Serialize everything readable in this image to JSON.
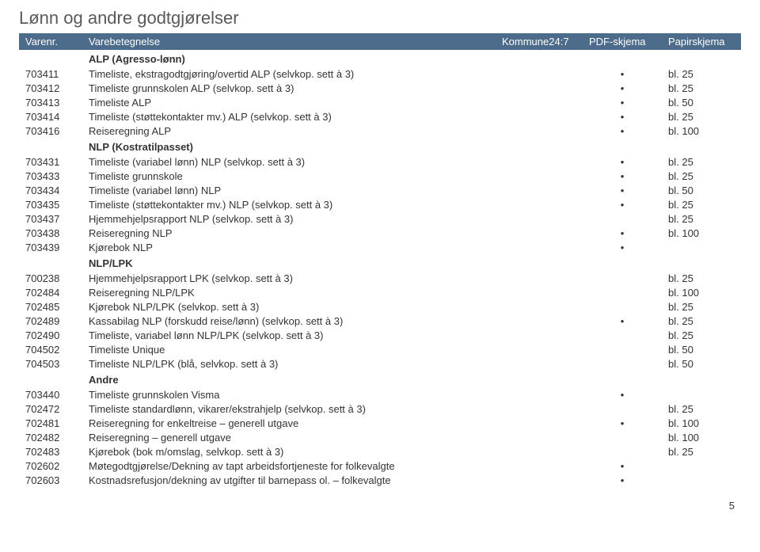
{
  "title": "Lønn og andre godtgjørelser",
  "columns": {
    "varenr": "Varenr.",
    "varebetegnelse": "Varebetegnelse",
    "kommune": "Kommune24:7",
    "pdf": "PDF-skjema",
    "papir": "Papirskjema"
  },
  "dot": "•",
  "page_number": "5",
  "sections": [
    {
      "label": "ALP (Agresso-lønn)",
      "rows": [
        {
          "nr": "703411",
          "desc": "Timeliste, ekstragodtgjøring/overtid ALP (selvkop. sett à 3)",
          "k247": "",
          "pdf": "•",
          "paper": "bl. 25"
        },
        {
          "nr": "703412",
          "desc": "Timeliste grunnskolen ALP (selvkop. sett à 3)",
          "k247": "",
          "pdf": "•",
          "paper": "bl. 25"
        },
        {
          "nr": "703413",
          "desc": "Timeliste ALP",
          "k247": "",
          "pdf": "•",
          "paper": "bl. 50"
        },
        {
          "nr": "703414",
          "desc": "Timeliste (støttekontakter mv.) ALP (selvkop. sett à 3)",
          "k247": "",
          "pdf": "•",
          "paper": "bl. 25"
        },
        {
          "nr": "703416",
          "desc": "Reiseregning ALP",
          "k247": "",
          "pdf": "•",
          "paper": "bl. 100"
        }
      ]
    },
    {
      "label": "NLP (Kostratilpasset)",
      "rows": [
        {
          "nr": "703431",
          "desc": "Timeliste (variabel lønn) NLP (selvkop. sett à 3)",
          "k247": "",
          "pdf": "•",
          "paper": "bl. 25"
        },
        {
          "nr": "703433",
          "desc": "Timeliste grunnskole",
          "k247": "",
          "pdf": "•",
          "paper": "bl. 25"
        },
        {
          "nr": "703434",
          "desc": "Timeliste (variabel lønn) NLP",
          "k247": "",
          "pdf": "•",
          "paper": "bl. 50"
        },
        {
          "nr": "703435",
          "desc": "Timeliste (støttekontakter mv.) NLP (selvkop. sett à 3)",
          "k247": "",
          "pdf": "•",
          "paper": "bl. 25"
        },
        {
          "nr": "703437",
          "desc": "Hjemmehjelpsrapport NLP (selvkop. sett à 3)",
          "k247": "",
          "pdf": "",
          "paper": "bl. 25"
        },
        {
          "nr": "703438",
          "desc": "Reiseregning NLP",
          "k247": "",
          "pdf": "•",
          "paper": "bl. 100"
        },
        {
          "nr": "703439",
          "desc": "Kjørebok NLP",
          "k247": "",
          "pdf": "•",
          "paper": ""
        }
      ]
    },
    {
      "label": "NLP/LPK",
      "rows": [
        {
          "nr": "700238",
          "desc": "Hjemmehjelpsrapport LPK (selvkop. sett à 3)",
          "k247": "",
          "pdf": "",
          "paper": "bl. 25"
        },
        {
          "nr": "702484",
          "desc": "Reiseregning NLP/LPK",
          "k247": "",
          "pdf": "",
          "paper": "bl. 100"
        },
        {
          "nr": "702485",
          "desc": "Kjørebok NLP/LPK (selvkop. sett à 3)",
          "k247": "",
          "pdf": "",
          "paper": "bl. 25"
        },
        {
          "nr": "702489",
          "desc": "Kassabilag NLP (forskudd reise/lønn) (selvkop. sett à 3)",
          "k247": "",
          "pdf": "•",
          "paper": "bl. 25"
        },
        {
          "nr": "702490",
          "desc": "Timeliste, variabel lønn NLP/LPK (selvkop. sett à 3)",
          "k247": "",
          "pdf": "",
          "paper": "bl. 25"
        },
        {
          "nr": "704502",
          "desc": "Timeliste Unique",
          "k247": "",
          "pdf": "",
          "paper": "bl. 50"
        },
        {
          "nr": "704503",
          "desc": "Timeliste NLP/LPK (blå, selvkop. sett à 3)",
          "k247": "",
          "pdf": "",
          "paper": "bl. 50"
        }
      ]
    },
    {
      "label": "Andre",
      "rows": [
        {
          "nr": "703440",
          "desc": "Timeliste grunnskolen Visma",
          "k247": "",
          "pdf": "•",
          "paper": ""
        },
        {
          "nr": "702472",
          "desc": "Timeliste standardlønn, vikarer/ekstrahjelp (selvkop. sett à 3)",
          "k247": "",
          "pdf": "",
          "paper": "bl. 25"
        },
        {
          "nr": "702481",
          "desc": "Reiseregning for enkeltreise – generell utgave",
          "k247": "",
          "pdf": "•",
          "paper": "bl. 100"
        },
        {
          "nr": "702482",
          "desc": "Reiseregning – generell utgave",
          "k247": "",
          "pdf": "",
          "paper": "bl. 100"
        },
        {
          "nr": "702483",
          "desc": "Kjørebok (bok m/omslag, selvkop. sett à 3)",
          "k247": "",
          "pdf": "",
          "paper": "bl. 25"
        },
        {
          "nr": "702602",
          "desc": "Møtegodtgjørelse/Dekning av tapt arbeidsfortjeneste for folkevalgte",
          "k247": "",
          "pdf": "•",
          "paper": ""
        },
        {
          "nr": "702603",
          "desc": "Kostnadsrefusjon/dekning av utgifter til barnepass ol. – folkevalgte",
          "k247": "",
          "pdf": "•",
          "paper": ""
        }
      ]
    }
  ]
}
